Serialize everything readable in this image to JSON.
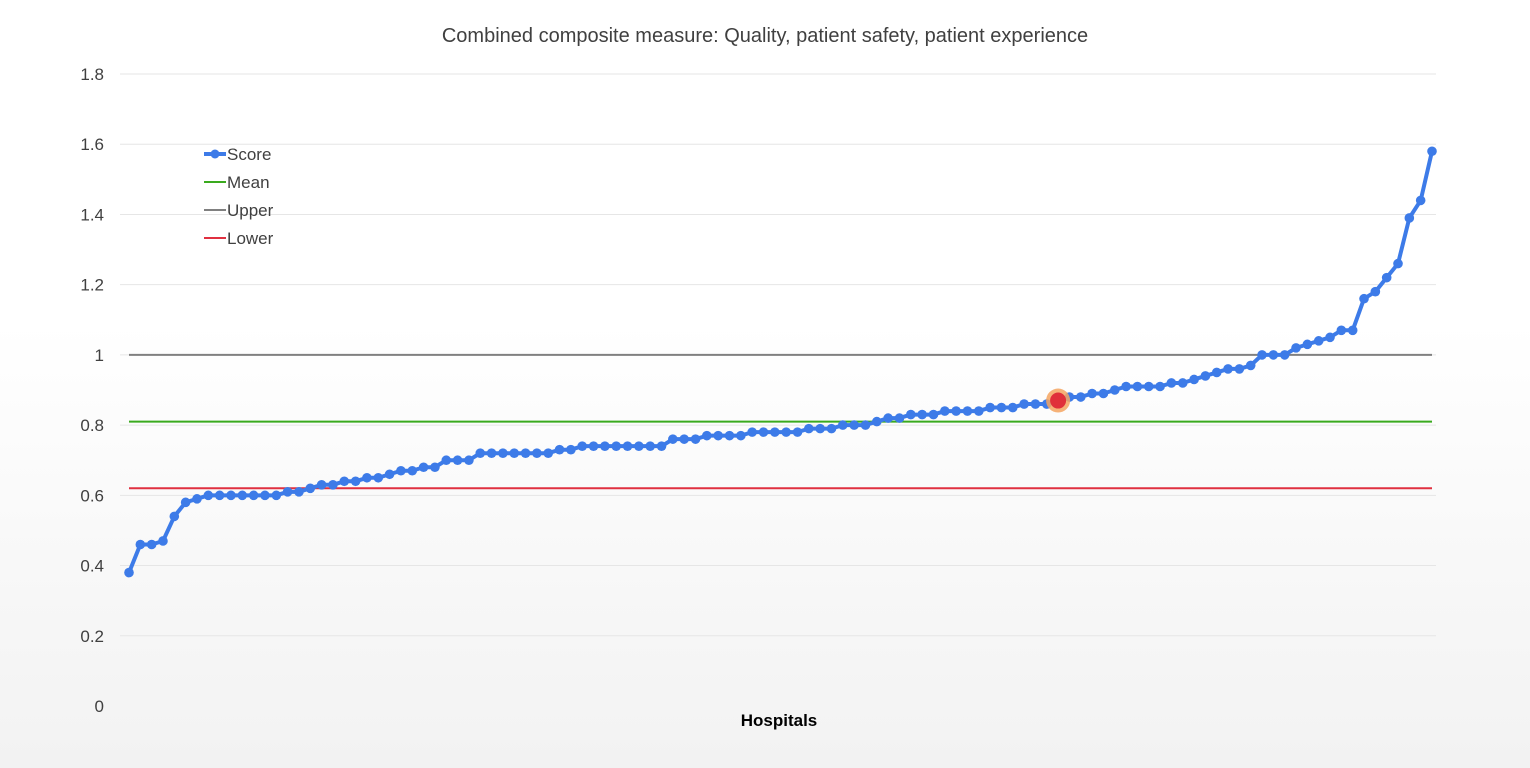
{
  "chart_data": {
    "type": "line",
    "title": "Combined composite measure: Quality, patient safety, patient experience",
    "xlabel": "Hospitals",
    "ylabel": "",
    "ylim": [
      0,
      1.8
    ],
    "yticks": [
      "0",
      "0.2",
      "0.4",
      "0.6",
      "0.8",
      "1",
      "1.2",
      "1.4",
      "1.6",
      "1.8"
    ],
    "ytick_values": [
      0,
      0.2,
      0.4,
      0.6,
      0.8,
      1.0,
      1.2,
      1.4,
      1.6,
      1.8
    ],
    "grid": true,
    "legend": {
      "placement": "top-left",
      "entries": [
        "Score",
        "Mean",
        "Upper",
        "Lower"
      ]
    },
    "colors": {
      "score": "#3d7be8",
      "mean": "#3aaa1e",
      "upper": "#808080",
      "lower": "#e03040",
      "highlight": "#e0303a",
      "highlight_halo": "#f4a460",
      "grid": "#e6e6e6"
    },
    "series": [
      {
        "name": "Score",
        "kind": "line-markers",
        "values": [
          0.38,
          0.46,
          0.46,
          0.47,
          0.54,
          0.58,
          0.59,
          0.6,
          0.6,
          0.6,
          0.6,
          0.6,
          0.6,
          0.6,
          0.61,
          0.61,
          0.62,
          0.63,
          0.63,
          0.64,
          0.64,
          0.65,
          0.65,
          0.66,
          0.67,
          0.67,
          0.68,
          0.68,
          0.7,
          0.7,
          0.7,
          0.72,
          0.72,
          0.72,
          0.72,
          0.72,
          0.72,
          0.72,
          0.73,
          0.73,
          0.74,
          0.74,
          0.74,
          0.74,
          0.74,
          0.74,
          0.74,
          0.74,
          0.76,
          0.76,
          0.76,
          0.77,
          0.77,
          0.77,
          0.77,
          0.78,
          0.78,
          0.78,
          0.78,
          0.78,
          0.79,
          0.79,
          0.79,
          0.8,
          0.8,
          0.8,
          0.81,
          0.82,
          0.82,
          0.83,
          0.83,
          0.83,
          0.84,
          0.84,
          0.84,
          0.84,
          0.85,
          0.85,
          0.85,
          0.86,
          0.86,
          0.86,
          0.87,
          0.88,
          0.88,
          0.89,
          0.89,
          0.9,
          0.91,
          0.91,
          0.91,
          0.91,
          0.92,
          0.92,
          0.93,
          0.94,
          0.95,
          0.96,
          0.96,
          0.97,
          1.0,
          1.0,
          1.0,
          1.02,
          1.03,
          1.04,
          1.05,
          1.07,
          1.07,
          1.16,
          1.18,
          1.22,
          1.26,
          1.39,
          1.44,
          1.58
        ]
      },
      {
        "name": "Mean",
        "kind": "hline",
        "value": 0.81
      },
      {
        "name": "Upper",
        "kind": "hline",
        "value": 1.0
      },
      {
        "name": "Lower",
        "kind": "hline",
        "value": 0.62
      }
    ],
    "highlight_index": 82
  }
}
